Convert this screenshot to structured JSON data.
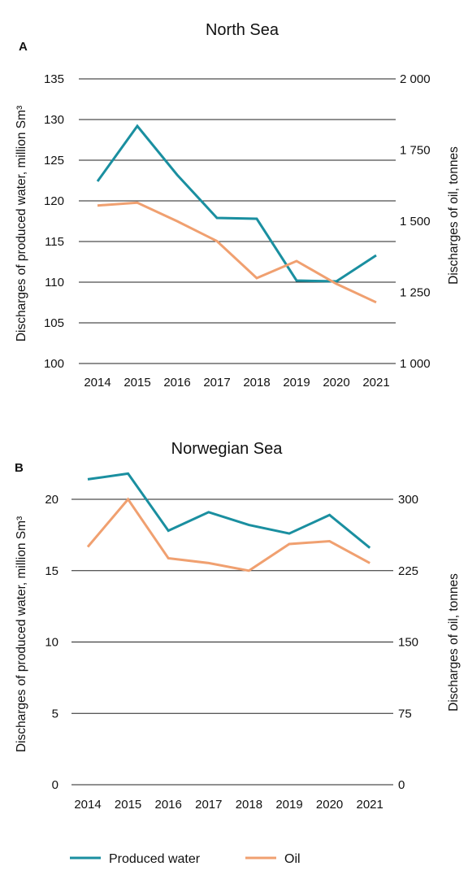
{
  "chart_data": [
    {
      "type": "line",
      "panel": "A",
      "title": "North Sea",
      "categories": [
        "2014",
        "2015",
        "2016",
        "2017",
        "2018",
        "2019",
        "2020",
        "2021"
      ],
      "ylabel_left": "Discharges of produced water, million  Sm³",
      "ylabel_right": "Discharges of oil, tonnes",
      "ylim_left": [
        100,
        135
      ],
      "ylim_right": [
        1000,
        2000
      ],
      "yticks_left": [
        "100",
        "105",
        "110",
        "115",
        "120",
        "125",
        "130",
        "135"
      ],
      "yticks_right": [
        "1 000",
        "1 250",
        "1 500",
        "1 750",
        "2 000"
      ],
      "grid": true,
      "series": [
        {
          "name": "Produced water",
          "axis": "left",
          "color": "#1a8fa0",
          "values": [
            122.4,
            129.2,
            123.2,
            117.9,
            117.8,
            110.2,
            110.1,
            113.3
          ]
        },
        {
          "name": "Oil",
          "axis": "right",
          "color": "#f0a070",
          "values": [
            1555,
            1565,
            1500,
            1430,
            1300,
            1360,
            1280,
            1215
          ]
        }
      ]
    },
    {
      "type": "line",
      "panel": "B",
      "title": "Norwegian Sea",
      "categories": [
        "2014",
        "2015",
        "2016",
        "2017",
        "2018",
        "2019",
        "2020",
        "2021"
      ],
      "ylabel_left": "Discharges of produced water, million Sm³",
      "ylabel_right": "Discharges of oil, tonnes",
      "ylim_left": [
        0,
        20
      ],
      "ylim_right": [
        0,
        300
      ],
      "yticks_left": [
        "0",
        "5",
        "10",
        "15",
        "20"
      ],
      "yticks_right": [
        "0",
        "75",
        "150",
        "225",
        "300"
      ],
      "grid": true,
      "series": [
        {
          "name": "Produced water",
          "axis": "left",
          "color": "#1a8fa0",
          "values": [
            21.4,
            21.8,
            17.8,
            19.1,
            18.2,
            17.6,
            18.9,
            16.6
          ]
        },
        {
          "name": "Oil",
          "axis": "right",
          "color": "#f0a070",
          "values": [
            250,
            300,
            238,
            233,
            225,
            253,
            256,
            233
          ]
        }
      ]
    }
  ],
  "legend": [
    {
      "label": "Produced water",
      "color": "#1a8fa0"
    },
    {
      "label": "Oil",
      "color": "#f0a070"
    }
  ]
}
